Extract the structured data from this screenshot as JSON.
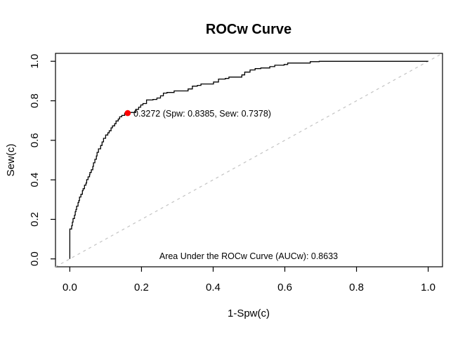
{
  "window": {
    "background": "#ffffff"
  },
  "chart_data": {
    "type": "line",
    "subtype": "step-roc",
    "title": "ROCw Curve",
    "xlabel": "1-Spw(c)",
    "ylabel": "Sew(c)",
    "xlim": [
      0,
      1
    ],
    "ylim": [
      0,
      1
    ],
    "grid": false,
    "legend": null,
    "xticks": {
      "values": [
        0,
        0.2,
        0.4,
        0.6,
        0.8,
        1.0
      ],
      "labels": [
        "0.0",
        "0.2",
        "0.4",
        "0.6",
        "0.8",
        "1.0"
      ]
    },
    "yticks": {
      "values": [
        0,
        0.2,
        0.4,
        0.6,
        0.8,
        1.0
      ],
      "labels": [
        "0.0",
        "0.2",
        "0.4",
        "0.6",
        "0.8",
        "1.0"
      ]
    },
    "series": [
      {
        "name": "ROCw curve",
        "style": "step",
        "color": "#000000",
        "points": [
          [
            0.0,
            0.0
          ],
          [
            0.0,
            0.144
          ],
          [
            0.005,
            0.151
          ],
          [
            0.007,
            0.168
          ],
          [
            0.009,
            0.186
          ],
          [
            0.013,
            0.204
          ],
          [
            0.015,
            0.221
          ],
          [
            0.017,
            0.239
          ],
          [
            0.019,
            0.25
          ],
          [
            0.023,
            0.267
          ],
          [
            0.025,
            0.285
          ],
          [
            0.027,
            0.295
          ],
          [
            0.031,
            0.313
          ],
          [
            0.035,
            0.327
          ],
          [
            0.037,
            0.345
          ],
          [
            0.041,
            0.355
          ],
          [
            0.045,
            0.373
          ],
          [
            0.047,
            0.384
          ],
          [
            0.051,
            0.401
          ],
          [
            0.055,
            0.415
          ],
          [
            0.056,
            0.426
          ],
          [
            0.06,
            0.437
          ],
          [
            0.064,
            0.451
          ],
          [
            0.066,
            0.468
          ],
          [
            0.07,
            0.486
          ],
          [
            0.074,
            0.504
          ],
          [
            0.076,
            0.521
          ],
          [
            0.08,
            0.539
          ],
          [
            0.086,
            0.557
          ],
          [
            0.09,
            0.574
          ],
          [
            0.094,
            0.592
          ],
          [
            0.1,
            0.61
          ],
          [
            0.106,
            0.627
          ],
          [
            0.11,
            0.638
          ],
          [
            0.115,
            0.648
          ],
          [
            0.119,
            0.663
          ],
          [
            0.125,
            0.673
          ],
          [
            0.129,
            0.684
          ],
          [
            0.135,
            0.698
          ],
          [
            0.139,
            0.708
          ],
          [
            0.145,
            0.719
          ],
          [
            0.153,
            0.726
          ],
          [
            0.1615,
            0.7378
          ],
          [
            0.184,
            0.741
          ],
          [
            0.192,
            0.757
          ],
          [
            0.198,
            0.768
          ],
          [
            0.204,
            0.779
          ],
          [
            0.214,
            0.786
          ],
          [
            0.232,
            0.804
          ],
          [
            0.243,
            0.807
          ],
          [
            0.253,
            0.814
          ],
          [
            0.261,
            0.825
          ],
          [
            0.271,
            0.839
          ],
          [
            0.291,
            0.842
          ],
          [
            0.33,
            0.85
          ],
          [
            0.342,
            0.86
          ],
          [
            0.356,
            0.874
          ],
          [
            0.366,
            0.878
          ],
          [
            0.401,
            0.885
          ],
          [
            0.415,
            0.895
          ],
          [
            0.434,
            0.91
          ],
          [
            0.444,
            0.913
          ],
          [
            0.48,
            0.92
          ],
          [
            0.488,
            0.931
          ],
          [
            0.503,
            0.945
          ],
          [
            0.517,
            0.956
          ],
          [
            0.533,
            0.963
          ],
          [
            0.558,
            0.966
          ],
          [
            0.572,
            0.973
          ],
          [
            0.598,
            0.98
          ],
          [
            0.608,
            0.984
          ],
          [
            0.671,
            0.991
          ],
          [
            0.696,
            0.998
          ],
          [
            0.903,
            1.0
          ],
          [
            1.0,
            1.0
          ]
        ]
      },
      {
        "name": "chance reference line",
        "style": "dashed",
        "color": "#c3c3c3",
        "points": [
          [
            0,
            0
          ],
          [
            1,
            1
          ]
        ]
      }
    ],
    "marker": {
      "x": 0.1615,
      "y": 0.7378,
      "color": "#ff0000",
      "label": "0.3272 (Spw: 0.8385, Sew: 0.7378)",
      "cutoff": 0.3272,
      "spw": 0.8385,
      "sew": 0.7378
    },
    "annotations": [
      {
        "text": "Area Under the ROCw Curve (AUCw): 0.8633",
        "x": 0.5,
        "y": 0.0,
        "auc": 0.8633
      }
    ]
  }
}
